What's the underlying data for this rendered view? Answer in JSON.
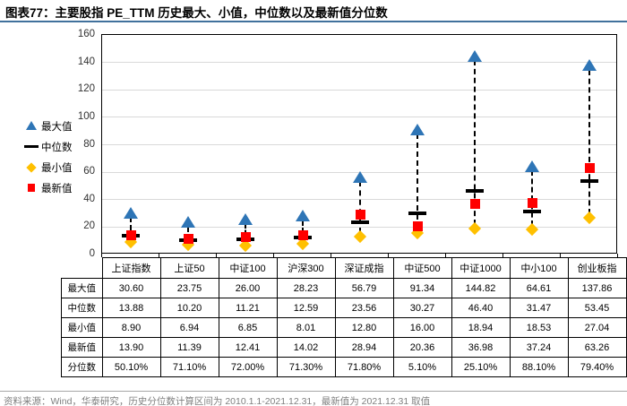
{
  "title": {
    "label": "图表77：",
    "text": "主要股指 PE_TTM 历史最大、小值，中位数以及最新值分位数"
  },
  "legend": [
    {
      "label": "最大值",
      "marker": "triangle",
      "color": "#2E75B6"
    },
    {
      "label": "中位数",
      "marker": "dash",
      "color": "#000000"
    },
    {
      "label": "最小值",
      "marker": "diamond",
      "color": "#FFC000"
    },
    {
      "label": "最新值",
      "marker": "square",
      "color": "#FF0000"
    }
  ],
  "chart_data": {
    "type": "scatter",
    "title": "主要股指 PE_TTM 历史最大、小值，中位数以及最新值分位数",
    "categories": [
      "上证指数",
      "上证50",
      "中证100",
      "沪深300",
      "深证成指",
      "中证500",
      "中证1000",
      "中小100",
      "创业板指"
    ],
    "series": [
      {
        "name": "最大值",
        "marker": "triangle",
        "color": "#2E75B6",
        "values": [
          30.6,
          23.75,
          26.0,
          28.23,
          56.79,
          91.34,
          144.82,
          64.61,
          137.86
        ]
      },
      {
        "name": "中位数",
        "marker": "dash",
        "color": "#000000",
        "values": [
          13.88,
          10.2,
          11.21,
          12.59,
          23.56,
          30.27,
          46.4,
          31.47,
          53.45
        ]
      },
      {
        "name": "最小值",
        "marker": "diamond",
        "color": "#FFC000",
        "values": [
          8.9,
          6.94,
          6.85,
          8.01,
          12.8,
          16.0,
          18.94,
          18.53,
          27.04
        ]
      },
      {
        "name": "最新值",
        "marker": "square",
        "color": "#FF0000",
        "values": [
          13.9,
          11.39,
          12.41,
          14.02,
          28.94,
          20.36,
          36.98,
          37.24,
          63.26
        ]
      }
    ],
    "ylim": [
      0,
      160
    ],
    "ytick_interval": 20,
    "grid": true,
    "legend_position": "left",
    "range_line_style": "dashed"
  },
  "table": {
    "row_labels": [
      "最大值",
      "中位数",
      "最小值",
      "最新值",
      "分位数"
    ],
    "columns": [
      "上证指数",
      "上证50",
      "中证100",
      "沪深300",
      "深证成指",
      "中证500",
      "中证1000",
      "中小100",
      "创业板指"
    ],
    "rows": [
      [
        "30.60",
        "23.75",
        "26.00",
        "28.23",
        "56.79",
        "91.34",
        "144.82",
        "64.61",
        "137.86"
      ],
      [
        "13.88",
        "10.20",
        "11.21",
        "12.59",
        "23.56",
        "30.27",
        "46.40",
        "31.47",
        "53.45"
      ],
      [
        "8.90",
        "6.94",
        "6.85",
        "8.01",
        "12.80",
        "16.00",
        "18.94",
        "18.53",
        "27.04"
      ],
      [
        "13.90",
        "11.39",
        "12.41",
        "14.02",
        "28.94",
        "20.36",
        "36.98",
        "37.24",
        "63.26"
      ],
      [
        "50.10%",
        "71.10%",
        "72.00%",
        "71.30%",
        "71.80%",
        "5.10%",
        "25.10%",
        "88.10%",
        "79.40%"
      ]
    ]
  },
  "footer": {
    "text": "资料来源：Wind，华泰研究，历史分位数计算区间为 2010.1.1-2021.12.31，最新值为 2021.12.31 取值"
  }
}
